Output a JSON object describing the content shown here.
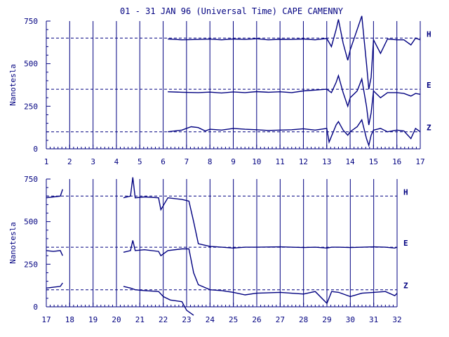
{
  "title": "01 - 31 JAN 96 (Universal Time) CAPE CAMENNY",
  "colors": {
    "ink": "#000080",
    "background": "#ffffff"
  },
  "chart_data": [
    {
      "type": "line",
      "panel": "top",
      "ylabel": "Nanotesla",
      "xlim": [
        1,
        17
      ],
      "ylim": [
        0,
        750
      ],
      "x_ticks": [
        "1",
        "2",
        "3",
        "4",
        "5",
        "6",
        "7",
        "8",
        "9",
        "10",
        "11",
        "12",
        "13",
        "14",
        "15",
        "16",
        "17"
      ],
      "y_ticks": [
        "0",
        "250",
        "500",
        "750"
      ],
      "grid": "vertical lines at each day",
      "reference_lines": [
        {
          "label": "H",
          "y": 650
        },
        {
          "label": "E",
          "y": 350
        },
        {
          "label": "Z",
          "y": 100
        }
      ],
      "series": [
        {
          "name": "H",
          "x": [
            6.2,
            6.8,
            7.5,
            8,
            8.5,
            9,
            9.5,
            10,
            10.5,
            11,
            11.5,
            12,
            12.5,
            13,
            13.2,
            13.4,
            13.5,
            13.7,
            13.9,
            14,
            14.3,
            14.5,
            14.7,
            14.8,
            14.9,
            15,
            15.3,
            15.6,
            16,
            16.3,
            16.6,
            16.8,
            17
          ],
          "y": [
            645,
            640,
            642,
            644,
            640,
            645,
            642,
            646,
            640,
            643,
            642,
            645,
            640,
            648,
            600,
            700,
            760,
            620,
            520,
            580,
            700,
            780,
            500,
            350,
            420,
            640,
            560,
            645,
            640,
            640,
            610,
            650,
            640
          ]
        },
        {
          "name": "E",
          "x": [
            6.2,
            6.8,
            7.5,
            8,
            8.5,
            9,
            9.5,
            10,
            10.5,
            11,
            11.5,
            12,
            12.5,
            13,
            13.2,
            13.4,
            13.5,
            13.7,
            13.9,
            14,
            14.3,
            14.5,
            14.7,
            14.8,
            14.9,
            15,
            15.3,
            15.6,
            16,
            16.3,
            16.6,
            16.8,
            17
          ],
          "y": [
            335,
            332,
            330,
            333,
            328,
            334,
            330,
            336,
            332,
            335,
            330,
            340,
            345,
            350,
            330,
            390,
            430,
            330,
            250,
            300,
            340,
            410,
            250,
            140,
            210,
            340,
            300,
            330,
            330,
            325,
            310,
            325,
            320
          ]
        },
        {
          "name": "Z",
          "x": [
            6.2,
            6.8,
            7.2,
            7.5,
            7.8,
            8,
            8.5,
            9,
            9.5,
            10,
            10.5,
            11,
            11.5,
            12,
            12.5,
            13,
            13.1,
            13.4,
            13.5,
            13.7,
            13.9,
            14,
            14.3,
            14.5,
            14.7,
            14.8,
            14.9,
            15,
            15.3,
            15.6,
            16,
            16.3,
            16.6,
            16.8,
            17
          ],
          "y": [
            100,
            110,
            130,
            125,
            105,
            115,
            110,
            120,
            115,
            112,
            108,
            110,
            112,
            118,
            110,
            120,
            40,
            140,
            160,
            110,
            80,
            100,
            130,
            170,
            60,
            20,
            80,
            110,
            120,
            100,
            110,
            105,
            60,
            120,
            100
          ]
        }
      ]
    },
    {
      "type": "line",
      "panel": "bottom",
      "ylabel": "Nanotesla",
      "xlim": [
        17,
        32
      ],
      "ylim": [
        0,
        750
      ],
      "x_ticks": [
        "17",
        "18",
        "19",
        "20",
        "21",
        "22",
        "23",
        "24",
        "25",
        "26",
        "27",
        "28",
        "29",
        "30",
        "31",
        "32"
      ],
      "y_ticks": [
        "0",
        "250",
        "500",
        "750"
      ],
      "grid": "vertical lines at each day",
      "reference_lines": [
        {
          "label": "H",
          "y": 650
        },
        {
          "label": "E",
          "y": 350
        },
        {
          "label": "Z",
          "y": 100
        }
      ],
      "series": [
        {
          "name": "H",
          "segments": [
            {
              "x": [
                17,
                17.3,
                17.6,
                17.7
              ],
              "y": [
                640,
                645,
                650,
                690
              ]
            },
            {
              "x": [
                20.3,
                20.6,
                20.7,
                20.8,
                21.2,
                21.8,
                21.9,
                22.2,
                22.8,
                23.1,
                23.3,
                23.5,
                24,
                24.5,
                25,
                25.5,
                26,
                27,
                28,
                28.5,
                29,
                29.2,
                29.5,
                30,
                30.5,
                31,
                31.5,
                31.9,
                32
              ],
              "y": [
                640,
                650,
                760,
                640,
                645,
                640,
                570,
                640,
                630,
                620,
                500,
                370,
                355,
                350,
                345,
                350,
                350,
                352,
                348,
                350,
                345,
                350,
                350,
                348,
                350,
                352,
                350,
                345,
                350
              ]
            }
          ]
        },
        {
          "name": "E",
          "segments": [
            {
              "x": [
                17,
                17.3,
                17.6,
                17.7
              ],
              "y": [
                330,
                325,
                330,
                300
              ]
            },
            {
              "x": [
                20.3,
                20.6,
                20.7,
                20.8,
                21.2,
                21.8,
                21.9,
                22.2,
                22.8,
                23.1,
                23.3,
                23.5,
                24,
                24.5,
                25,
                25.5,
                26,
                27,
                28,
                28.5,
                29,
                29.2,
                29.5,
                30,
                30.5,
                31,
                31.5,
                31.9,
                32
              ],
              "y": [
                320,
                330,
                390,
                330,
                335,
                325,
                300,
                330,
                340,
                340,
                200,
                130,
                100,
                95,
                85,
                70,
                80,
                85,
                75,
                90,
                20,
                90,
                85,
                60,
                80,
                85,
                90,
                65,
                80
              ]
            }
          ]
        },
        {
          "name": "Z",
          "segments": [
            {
              "x": [
                17,
                17.3,
                17.6,
                17.7
              ],
              "y": [
                110,
                115,
                120,
                140
              ]
            },
            {
              "x": [
                20.3,
                20.6,
                20.8,
                21.2,
                21.8,
                22,
                22.3,
                22.8,
                23,
                23.2,
                23.3
              ],
              "y": [
                120,
                110,
                100,
                95,
                90,
                60,
                40,
                30,
                -20,
                -40,
                -50
              ]
            }
          ]
        }
      ]
    }
  ]
}
